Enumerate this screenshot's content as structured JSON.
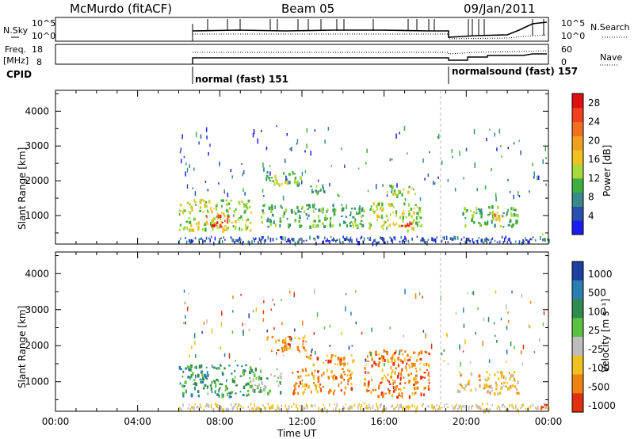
{
  "header": {
    "title": "McMurdo (fitACF)",
    "beam": "Beam 05",
    "date": "09/Jan/2011"
  },
  "strip": {
    "nsky_label": "N.Sky",
    "nsearch_label": "N.Search",
    "nsky_ticks": [
      "10^5",
      "10^0"
    ],
    "nsearch_ticks": [
      "10^5",
      "10^0"
    ],
    "freq_label": "Freq.",
    "freq_unit": "[MHz]",
    "freq_ticks": [
      "18",
      "8"
    ],
    "nave_label": "Nave",
    "nave_ticks": [
      "60",
      "0"
    ],
    "cpid_label": "CPID",
    "cpid_segments": [
      {
        "label": "normal (fast) 151",
        "start_hour": 6.0,
        "end_hour": 18.75
      },
      {
        "label": "normalsound (fast) 157",
        "start_hour": 18.75,
        "end_hour": 24.0
      }
    ]
  },
  "chart_data": [
    {
      "type": "heatmap",
      "name": "power",
      "ylabel": "Slant Range [km]",
      "xlabel": "",
      "yticks": [
        "1000",
        "2000",
        "3000",
        "4000"
      ],
      "ylim": [
        180,
        4600
      ],
      "xlim": [
        0,
        24
      ],
      "colorbar": {
        "label": "Power [dB]",
        "ticks": [
          "4",
          "8",
          "12",
          "16",
          "20",
          "24",
          "28"
        ],
        "range": [
          0,
          30
        ],
        "colors": [
          "#1c1cf0",
          "#2a4fb0",
          "#3a8a8a",
          "#3fae3f",
          "#a8d83a",
          "#f0c020",
          "#f0a020",
          "#f07020",
          "#f04020",
          "#e01010"
        ]
      },
      "data_start_hour": 6.0,
      "mode_change_hour": 18.75,
      "features": [
        {
          "t0": 6.0,
          "t1": 9.5,
          "r0": 600,
          "r1": 1500,
          "level": 14
        },
        {
          "t0": 7.3,
          "t1": 8.4,
          "r0": 700,
          "r1": 1050,
          "level": 26
        },
        {
          "t0": 10.2,
          "t1": 12.0,
          "r0": 1900,
          "r1": 2300,
          "level": 12
        },
        {
          "t0": 12.0,
          "t1": 13.2,
          "r0": 1650,
          "r1": 1900,
          "level": 9
        },
        {
          "t0": 10.0,
          "t1": 15.0,
          "r0": 700,
          "r1": 1350,
          "level": 10
        },
        {
          "t0": 15.2,
          "t1": 17.8,
          "r0": 600,
          "r1": 1400,
          "level": 14
        },
        {
          "t0": 16.6,
          "t1": 17.3,
          "r0": 700,
          "r1": 950,
          "level": 27
        },
        {
          "t0": 16.0,
          "t1": 17.5,
          "r0": 1600,
          "r1": 1900,
          "level": 12
        },
        {
          "t0": 19.8,
          "t1": 22.5,
          "r0": 700,
          "r1": 1300,
          "level": 11
        },
        {
          "t0": 21.2,
          "t1": 21.8,
          "r0": 900,
          "r1": 1200,
          "level": 18
        },
        {
          "t0": 23.6,
          "t1": 24.0,
          "r0": 250,
          "r1": 500,
          "level": 9
        }
      ]
    },
    {
      "type": "heatmap",
      "name": "velocity",
      "ylabel": "Slant Range [km]",
      "xlabel": "Time UT",
      "xticks": [
        "00:00",
        "04:00",
        "08:00",
        "12:00",
        "16:00",
        "20:00",
        "00:00"
      ],
      "yticks": [
        "1000",
        "2000",
        "3000",
        "4000"
      ],
      "ylim": [
        180,
        4600
      ],
      "xlim": [
        0,
        24
      ],
      "colorbar": {
        "label": "Velocity [m s⁻¹]",
        "ticks": [
          "1000",
          "500",
          "100",
          "25",
          "-25",
          "-100",
          "-500",
          "-1000"
        ],
        "colors": [
          "#1f3fa0",
          "#2a7fb0",
          "#2e8a50",
          "#5cc040",
          "#bdbdbd",
          "#f0c020",
          "#f08010",
          "#e03010"
        ]
      },
      "data_start_hour": 6.0,
      "mode_change_hour": 18.75,
      "features": [
        {
          "t0": 6.0,
          "t1": 9.5,
          "r0": 600,
          "r1": 1500,
          "vclass": 2
        },
        {
          "t0": 9.5,
          "t1": 11.0,
          "r0": 700,
          "r1": 1400,
          "vclass": 3
        },
        {
          "t0": 10.2,
          "t1": 12.2,
          "r0": 1850,
          "r1": 2300,
          "vclass": 6
        },
        {
          "t0": 12.0,
          "t1": 14.5,
          "r0": 1500,
          "r1": 1800,
          "vclass": 6
        },
        {
          "t0": 11.5,
          "t1": 14.5,
          "r0": 700,
          "r1": 1400,
          "vclass": 6
        },
        {
          "t0": 15.0,
          "t1": 18.2,
          "r0": 600,
          "r1": 1900,
          "vclass": 6
        },
        {
          "t0": 19.5,
          "t1": 22.5,
          "r0": 700,
          "r1": 1300,
          "vclass": 5
        },
        {
          "t0": 23.6,
          "t1": 24.0,
          "r0": 300,
          "r1": 550,
          "vclass": 7
        }
      ]
    }
  ]
}
